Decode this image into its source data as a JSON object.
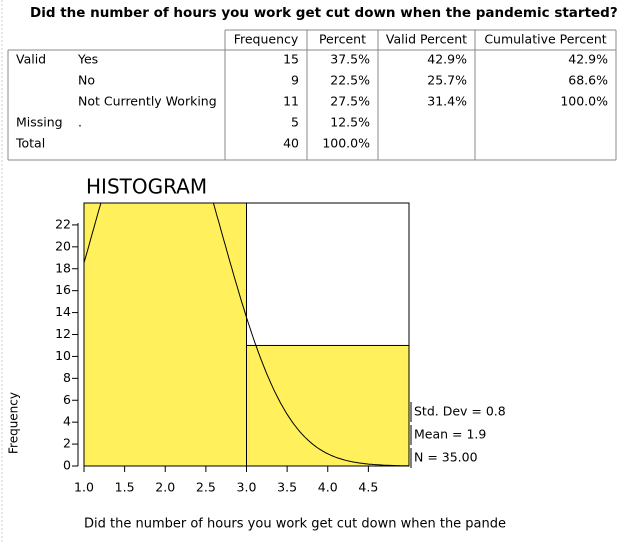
{
  "table": {
    "title": "Did the number of hours you work get cut down when the pandemic started?",
    "columns": [
      null,
      null,
      "Frequency",
      "Percent",
      "Valid Percent",
      "Cumulative Percent"
    ],
    "rows": [
      [
        "Valid",
        "Yes",
        15,
        "37.5%",
        "42.9%",
        "42.9%"
      ],
      [
        null,
        "No",
        9,
        "22.5%",
        "25.7%",
        "68.6%"
      ],
      [
        null,
        "Not Currently Working",
        11,
        "27.5%",
        "31.4%",
        "100.0%"
      ],
      [
        "Missing",
        ".",
        5,
        "12.5%",
        null,
        null
      ],
      [
        "Total",
        null,
        40,
        "100.0%",
        null,
        null
      ]
    ]
  },
  "chart_data": {
    "type": "histogram",
    "title": "HISTOGRAM",
    "x_label": "Did the number of hours you work get cut down when the pande",
    "y_label": "Frequency",
    "bins": [
      1,
      3,
      5
    ],
    "counts": [
      24,
      11
    ],
    "color": "#fff05c",
    "xlim": [
      1,
      5
    ],
    "ylim": [
      0,
      24
    ],
    "xticks": [
      {
        "value": 1,
        "label": "1.0"
      },
      1.5,
      {
        "value": 2,
        "label": "2.0"
      },
      2.5,
      {
        "value": 3,
        "label": "3.0"
      },
      3.5,
      {
        "value": 4,
        "label": "4.0"
      },
      4.5
    ],
    "yticks": [
      0,
      2,
      4,
      6,
      8,
      10,
      12,
      14,
      16,
      18,
      20,
      22
    ],
    "std": {
      "value": 0.8,
      "label": "Std. Dev = 0.8"
    },
    "mean": {
      "value": 1.9,
      "label": "Mean = 1.9"
    },
    "n": {
      "value": 35,
      "label": "N = 35.00"
    }
  }
}
